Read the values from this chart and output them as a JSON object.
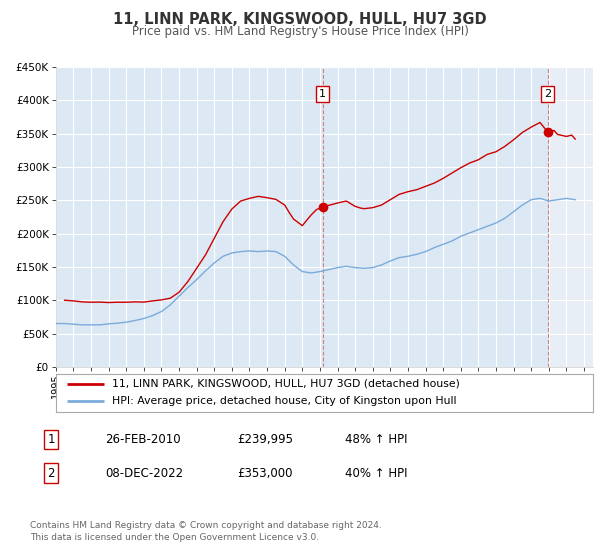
{
  "title": "11, LINN PARK, KINGSWOOD, HULL, HU7 3GD",
  "subtitle": "Price paid vs. HM Land Registry's House Price Index (HPI)",
  "background_color": "#ffffff",
  "plot_background": "#dce9f5",
  "plot_background_hatch": "#c8d8ec",
  "grid_color": "#ffffff",
  "red_line_color": "#cc0000",
  "blue_line_color": "#7aabdb",
  "marker1_date": 2010.15,
  "marker1_value": 239995,
  "marker1_label": "1",
  "marker1_text": "26-FEB-2010",
  "marker1_price": "£239,995",
  "marker1_hpi": "48% ↑ HPI",
  "marker2_date": 2022.93,
  "marker2_value": 353000,
  "marker2_label": "2",
  "marker2_text": "08-DEC-2022",
  "marker2_price": "£353,000",
  "marker2_hpi": "40% ↑ HPI",
  "xmin": 1995,
  "xmax": 2025.5,
  "ymin": 0,
  "ymax": 450000,
  "yticks": [
    0,
    50000,
    100000,
    150000,
    200000,
    250000,
    300000,
    350000,
    400000,
    450000
  ],
  "ytick_labels": [
    "£0",
    "£50K",
    "£100K",
    "£150K",
    "£200K",
    "£250K",
    "£300K",
    "£350K",
    "£400K",
    "£450K"
  ],
  "legend_label_red": "11, LINN PARK, KINGSWOOD, HULL, HU7 3GD (detached house)",
  "legend_label_blue": "HPI: Average price, detached house, City of Kingston upon Hull",
  "footer1": "Contains HM Land Registry data © Crown copyright and database right 2024.",
  "footer2": "This data is licensed under the Open Government Licence v3.0.",
  "red_data_x": [
    1995.5,
    1996.0,
    1996.5,
    1997.0,
    1997.5,
    1998.0,
    1998.5,
    1999.0,
    1999.5,
    2000.0,
    2000.5,
    2001.0,
    2001.5,
    2002.0,
    2002.5,
    2003.0,
    2003.5,
    2004.0,
    2004.5,
    2005.0,
    2005.5,
    2006.0,
    2006.5,
    2007.0,
    2007.5,
    2008.0,
    2008.25,
    2008.5,
    2009.0,
    2009.5,
    2009.8,
    2010.15,
    2010.5,
    2011.0,
    2011.5,
    2012.0,
    2012.3,
    2012.5,
    2013.0,
    2013.5,
    2014.0,
    2014.5,
    2015.0,
    2015.5,
    2016.0,
    2016.5,
    2017.0,
    2017.5,
    2018.0,
    2018.5,
    2019.0,
    2019.5,
    2020.0,
    2020.5,
    2021.0,
    2021.5,
    2022.0,
    2022.5,
    2022.93,
    2023.0,
    2023.3,
    2023.5,
    2024.0,
    2024.3,
    2024.5
  ],
  "red_data_y": [
    100000,
    99000,
    97500,
    97000,
    97200,
    96500,
    97000,
    97000,
    97500,
    97200,
    99000,
    100500,
    103000,
    112000,
    128000,
    148000,
    168000,
    193000,
    218000,
    237000,
    249000,
    253000,
    256000,
    254000,
    251500,
    243000,
    232000,
    222000,
    212000,
    228000,
    236000,
    239995,
    242500,
    246000,
    249000,
    241000,
    238500,
    237500,
    239000,
    243000,
    251000,
    259000,
    263000,
    266000,
    271000,
    276000,
    283000,
    291000,
    299000,
    306000,
    311000,
    319000,
    323000,
    331000,
    341000,
    352000,
    360000,
    367000,
    353000,
    352000,
    355000,
    349000,
    346000,
    348000,
    342000
  ],
  "blue_data_x": [
    1995.0,
    1995.5,
    1996.0,
    1996.5,
    1997.0,
    1997.5,
    1998.0,
    1998.5,
    1999.0,
    1999.5,
    2000.0,
    2000.5,
    2001.0,
    2001.5,
    2002.0,
    2002.5,
    2003.0,
    2003.5,
    2004.0,
    2004.5,
    2005.0,
    2005.5,
    2006.0,
    2006.5,
    2007.0,
    2007.5,
    2008.0,
    2008.5,
    2009.0,
    2009.5,
    2010.0,
    2010.5,
    2011.0,
    2011.5,
    2012.0,
    2012.5,
    2013.0,
    2013.5,
    2014.0,
    2014.5,
    2015.0,
    2015.5,
    2016.0,
    2016.5,
    2017.0,
    2017.5,
    2018.0,
    2018.5,
    2019.0,
    2019.5,
    2020.0,
    2020.5,
    2021.0,
    2021.5,
    2022.0,
    2022.5,
    2023.0,
    2023.5,
    2024.0,
    2024.5
  ],
  "blue_data_y": [
    65000,
    65000,
    64000,
    63000,
    63000,
    63000,
    64500,
    65500,
    67000,
    69500,
    72500,
    77000,
    83000,
    93000,
    106000,
    119000,
    131000,
    144000,
    156000,
    166000,
    171000,
    173000,
    174000,
    173000,
    174000,
    173000,
    166000,
    153000,
    143000,
    141000,
    143000,
    146000,
    149000,
    151000,
    149000,
    148000,
    149000,
    153000,
    159000,
    164000,
    166000,
    169000,
    173000,
    179000,
    184000,
    189000,
    196000,
    201000,
    206000,
    211000,
    216000,
    223000,
    233000,
    243000,
    251000,
    253000,
    249000,
    251000,
    253000,
    251000
  ]
}
